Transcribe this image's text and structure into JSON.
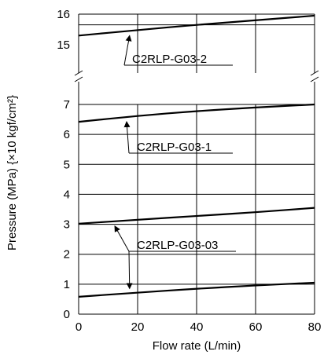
{
  "chart_data": {
    "type": "line",
    "xlabel": "Flow rate (L/min)",
    "ylabel": "Pressure (MPa) {×10 kgf/cm²}",
    "xlim": [
      0,
      80
    ],
    "ylim_lower": [
      0,
      7
    ],
    "ylim_upper": [
      15,
      16
    ],
    "axis_break": "y between 7 and 15",
    "grid": true,
    "x_ticks": [
      "0",
      "20",
      "40",
      "60",
      "80"
    ],
    "y_ticks_lower": [
      "0",
      "1",
      "2",
      "3",
      "4",
      "5",
      "6",
      "7"
    ],
    "y_ticks_upper": [
      "15",
      "16"
    ],
    "x": [
      0,
      20,
      40,
      60,
      80
    ],
    "series": [
      {
        "name": "C2RLP-G03-2",
        "values": [
          15.3,
          15.48,
          15.65,
          15.8,
          15.95
        ]
      },
      {
        "name": "C2RLP-G03-1",
        "values": [
          6.42,
          6.62,
          6.78,
          6.9,
          7.0
        ]
      },
      {
        "name": "C2RLP-G03-03",
        "values": [
          3.02,
          3.15,
          3.28,
          3.4,
          3.55
        ]
      },
      {
        "name": "C2RLP-G03-03",
        "values": [
          0.58,
          0.72,
          0.85,
          0.96,
          1.05
        ]
      }
    ],
    "annotations": [
      "C2RLP-G03-2",
      "C2RLP-G03-1",
      "C2RLP-G03-03"
    ]
  }
}
